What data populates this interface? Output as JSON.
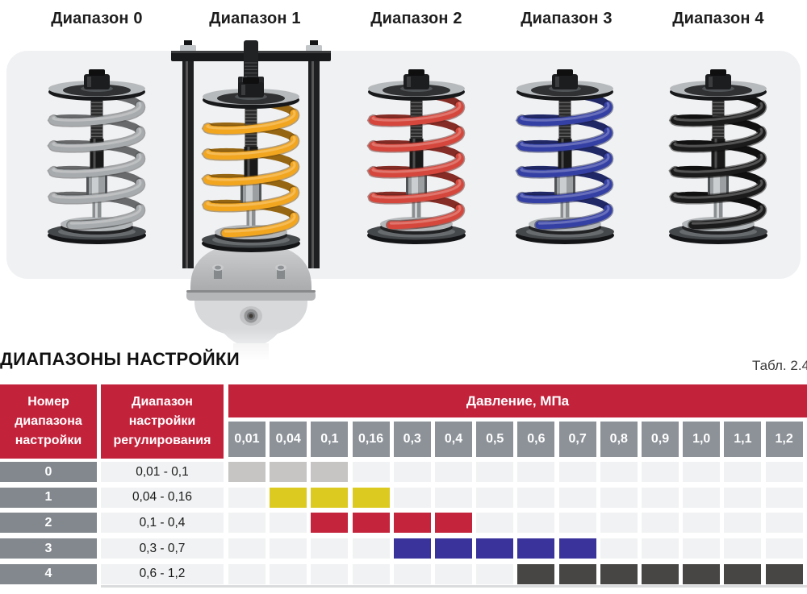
{
  "ranges": [
    {
      "label": "Диапазон 0",
      "spring_color": "#a8abae"
    },
    {
      "label": "Диапазон 1",
      "spring_color": "#f2a51e"
    },
    {
      "label": "Диапазон 2",
      "spring_color": "#d5473c"
    },
    {
      "label": "Диапазон 3",
      "spring_color": "#3540a4"
    },
    {
      "label": "Диапазон 4",
      "spring_color": "#1b1b1b"
    }
  ],
  "section": {
    "title": "ДИАПАЗОНЫ НАСТРОЙКИ",
    "caption": "Табл. 2.4"
  },
  "table": {
    "header_bg": "#c3223b",
    "subheader_bg": "#8c9298",
    "number_cell_bg": "#82888e",
    "empty_cell_bg": "#f1f2f3",
    "columns": {
      "number": "Номер диапазона настройки",
      "range": "Диапазон настройки регулирования",
      "pressure": "Давление, МПа"
    },
    "pressure_values": [
      "0,01",
      "0,04",
      "0,1",
      "0,16",
      "0,3",
      "0,4",
      "0,5",
      "0,6",
      "0,7",
      "0,8",
      "0,9",
      "1,0",
      "1,1",
      "1,2"
    ],
    "rows": [
      {
        "number": "0",
        "range": "0,01 - 0,1",
        "highlight_color": "#c6c5c4",
        "active_columns": [
          "0,01",
          "0,04",
          "0,1"
        ]
      },
      {
        "number": "1",
        "range": "0,04 - 0,16",
        "highlight_color": "#dcca20",
        "active_columns": [
          "0,04",
          "0,1",
          "0,16"
        ]
      },
      {
        "number": "2",
        "range": "0,1 - 0,4",
        "highlight_color": "#c4243c",
        "active_columns": [
          "0,1",
          "0,16",
          "0,3",
          "0,4"
        ]
      },
      {
        "number": "3",
        "range": "0,3 - 0,7",
        "highlight_color": "#3a339c",
        "active_columns": [
          "0,3",
          "0,4",
          "0,5",
          "0,6",
          "0,7"
        ]
      },
      {
        "number": "4",
        "range": "0,6 - 1,2",
        "highlight_color": "#474645",
        "active_columns": [
          "0,6",
          "0,7",
          "0,8",
          "0,9",
          "1,0",
          "1,1",
          "1,2"
        ]
      }
    ]
  }
}
